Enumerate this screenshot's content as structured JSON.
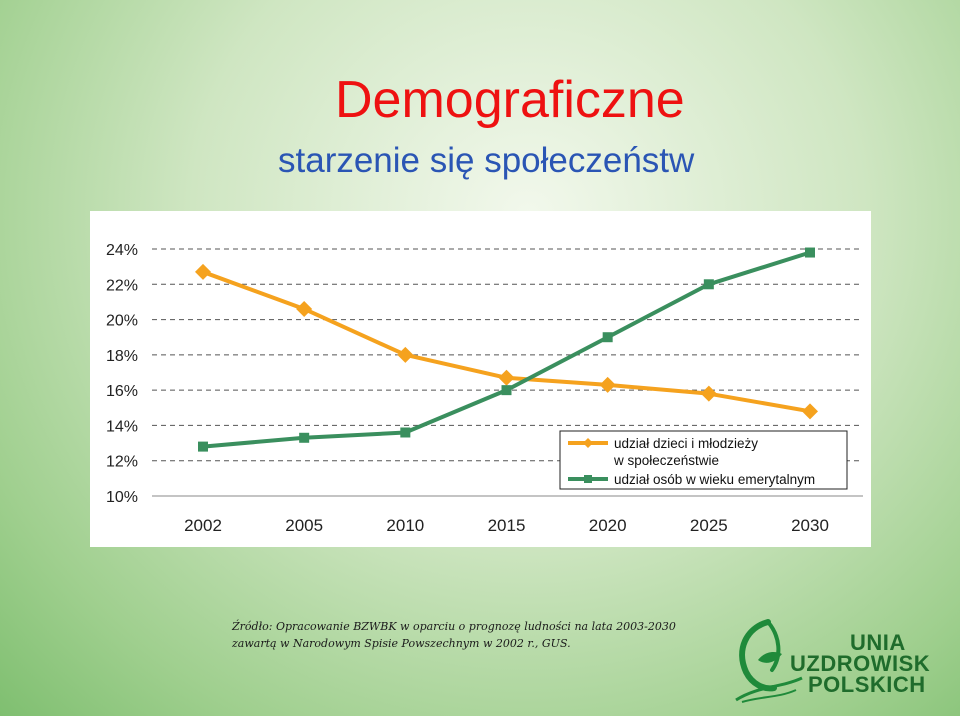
{
  "title": "Demograficzne",
  "subtitle": "starzenie się społeczeństw",
  "source_line1": "Źródło: Opracowanie BZWBK w oparciu o prognozę ludności na lata 2003-2030",
  "source_line2": "zawartą w Narodowym Spisie Powszechnym w 2002 r., GUS.",
  "logo": {
    "line1": "UNIA",
    "line2": "UZDROWISK",
    "line3": "POLSKICH",
    "icon": "leaf-swirl-logo-icon",
    "color": "#1f6c2c"
  },
  "colors": {
    "title": "#ee1111",
    "subtitle": "#2a55b4",
    "series1": "#f5a21e",
    "series2": "#3a8f5e"
  },
  "chart_data": {
    "type": "line",
    "categories": [
      "2002",
      "2005",
      "2010",
      "2015",
      "2020",
      "2025",
      "2030"
    ],
    "yticks": [
      "10%",
      "12%",
      "14%",
      "16%",
      "18%",
      "20%",
      "22%",
      "24%"
    ],
    "ylim": [
      10,
      24
    ],
    "grid": true,
    "legend_position": "bottom-right",
    "series": [
      {
        "name": "udział dzieci i młodzieży w społeczeństwie",
        "name_lines": [
          "udział dzieci i młodzieży",
          "w społeczeństwie"
        ],
        "marker": "diamond",
        "values": [
          22.7,
          20.6,
          18.0,
          16.7,
          16.3,
          15.8,
          14.8
        ]
      },
      {
        "name": "udział osób w wieku emerytalnym",
        "name_lines": [
          "udział osób w wieku emerytalnym"
        ],
        "marker": "square",
        "values": [
          12.8,
          13.3,
          13.6,
          16.0,
          19.0,
          22.0,
          23.8
        ]
      }
    ]
  }
}
